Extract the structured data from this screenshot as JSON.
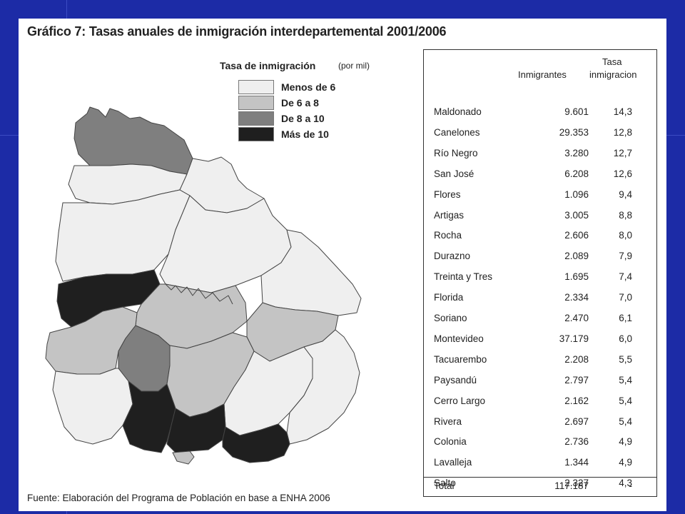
{
  "title": "Gráfico 7: Tasas anuales de  inmigración interdepartemental 2001/2006",
  "legend": {
    "title": "Tasa de inmigración",
    "unit": "(por mil)",
    "items": [
      {
        "label": "Menos de 6",
        "color": "#efefef"
      },
      {
        "label": "De 6 a 8",
        "color": "#c4c4c4"
      },
      {
        "label": "De 8 a 10",
        "color": "#7f7f7f"
      },
      {
        "label": "Más de 10",
        "color": "#1f1f1f"
      }
    ]
  },
  "table": {
    "header_inmigrantes": "Inmigrantes",
    "header_tasa_1": "Tasa",
    "header_tasa_2": "inmigracion",
    "rows": [
      {
        "name": "Maldonado",
        "inmigrantes": "9.601",
        "tasa": "14,3"
      },
      {
        "name": "Canelones",
        "inmigrantes": "29.353",
        "tasa": "12,8"
      },
      {
        "name": "Río Negro",
        "inmigrantes": "3.280",
        "tasa": "12,7"
      },
      {
        "name": "San José",
        "inmigrantes": "6.208",
        "tasa": "12,6"
      },
      {
        "name": "Flores",
        "inmigrantes": "1.096",
        "tasa": "9,4"
      },
      {
        "name": "Artigas",
        "inmigrantes": "3.005",
        "tasa": "8,8"
      },
      {
        "name": "Rocha",
        "inmigrantes": "2.606",
        "tasa": "8,0"
      },
      {
        "name": "Durazno",
        "inmigrantes": "2.089",
        "tasa": "7,9"
      },
      {
        "name": "Treinta y Tres",
        "inmigrantes": "1.695",
        "tasa": "7,4"
      },
      {
        "name": "Florida",
        "inmigrantes": "2.334",
        "tasa": "7,0"
      },
      {
        "name": "Soriano",
        "inmigrantes": "2.470",
        "tasa": "6,1"
      },
      {
        "name": "Montevideo",
        "inmigrantes": "37.179",
        "tasa": "6,0"
      },
      {
        "name": "Tacuarembo",
        "inmigrantes": "2.208",
        "tasa": "5,5"
      },
      {
        "name": "Paysandú",
        "inmigrantes": "2.797",
        "tasa": "5,4"
      },
      {
        "name": "Cerro Largo",
        "inmigrantes": "2.162",
        "tasa": "5,4"
      },
      {
        "name": "Rivera",
        "inmigrantes": "2.697",
        "tasa": "5,4"
      },
      {
        "name": "Colonia",
        "inmigrantes": "2.736",
        "tasa": "4,9"
      },
      {
        "name": "Lavalleja",
        "inmigrantes": "1.344",
        "tasa": "4,9"
      },
      {
        "name": "Salto",
        "inmigrantes": "2.327",
        "tasa": "4,3"
      }
    ],
    "total": {
      "name": "Total",
      "inmigrantes": "117.187",
      "tasa": "-"
    }
  },
  "source": "Fuente: Elaboración del Programa de Población en base a  ENHA 2006",
  "colors": {
    "background": "#1c2ba6",
    "panel": "#ffffff",
    "border": "#333333"
  }
}
